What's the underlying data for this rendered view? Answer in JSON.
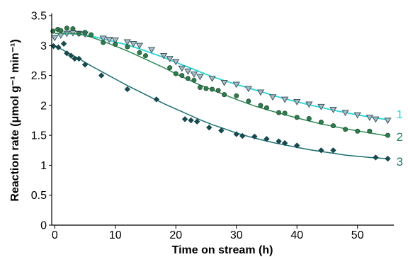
{
  "chart_data": {
    "type": "scatter",
    "xlabel": "Time on stream (h)",
    "ylabel": "Reaction rate (μmol g⁻¹ min⁻¹)",
    "xlim": [
      -0.5,
      56
    ],
    "ylim": [
      0,
      3.5
    ],
    "xticks": [
      0,
      10,
      20,
      30,
      40,
      50
    ],
    "yticks": [
      0,
      0.5,
      1,
      1.5,
      2,
      2.5,
      3,
      3.5
    ],
    "xtick_labels": [
      "0",
      "10",
      "20",
      "30",
      "40",
      "50"
    ],
    "ytick_labels": [
      "0",
      "0.5",
      "1",
      "1.5",
      "2",
      "2.5",
      "3",
      "3.5"
    ],
    "grid": false,
    "series": [
      {
        "name": "1",
        "marker": "triangle-down",
        "color": "#2ad4d4",
        "marker_color": "#3a5a66",
        "points": [
          [
            0,
            3.13
          ],
          [
            1,
            3.17
          ],
          [
            2,
            3.2
          ],
          [
            3,
            3.21
          ],
          [
            4,
            3.2
          ],
          [
            5,
            3.19
          ],
          [
            8,
            3.12
          ],
          [
            9,
            3.1
          ],
          [
            10,
            3.09
          ],
          [
            12,
            3.06
          ],
          [
            13,
            3.03
          ],
          [
            14,
            3.0
          ],
          [
            16,
            2.93
          ],
          [
            18,
            2.83
          ],
          [
            19,
            2.78
          ],
          [
            20,
            2.73
          ],
          [
            21,
            2.62
          ],
          [
            22,
            2.57
          ],
          [
            23,
            2.52
          ],
          [
            24,
            2.48
          ],
          [
            26,
            2.45
          ],
          [
            28,
            2.38
          ],
          [
            30,
            2.35
          ],
          [
            32,
            2.28
          ],
          [
            34,
            2.22
          ],
          [
            36,
            2.14
          ],
          [
            38,
            2.1
          ],
          [
            40,
            2.06
          ],
          [
            42,
            2.02
          ],
          [
            44,
            1.98
          ],
          [
            46,
            1.93
          ],
          [
            48,
            1.88
          ],
          [
            50,
            1.84
          ],
          [
            52,
            1.8
          ],
          [
            53,
            1.77
          ],
          [
            55,
            1.75
          ]
        ],
        "fit": [
          [
            0,
            3.16
          ],
          [
            2,
            3.2
          ],
          [
            4,
            3.19
          ],
          [
            6,
            3.16
          ],
          [
            8,
            3.11
          ],
          [
            10,
            3.06
          ],
          [
            12,
            3.01
          ],
          [
            15,
            2.91
          ],
          [
            18,
            2.8
          ],
          [
            20,
            2.72
          ],
          [
            23,
            2.6
          ],
          [
            26,
            2.48
          ],
          [
            30,
            2.35
          ],
          [
            34,
            2.23
          ],
          [
            38,
            2.11
          ],
          [
            42,
            2.01
          ],
          [
            46,
            1.92
          ],
          [
            50,
            1.84
          ],
          [
            53,
            1.79
          ],
          [
            55,
            1.76
          ]
        ]
      },
      {
        "name": "2",
        "marker": "circle",
        "color": "#2e8b57",
        "marker_color": "#2e7c4c",
        "points": [
          [
            -0.3,
            3.24
          ],
          [
            0.5,
            3.27
          ],
          [
            1,
            3.25
          ],
          [
            2,
            3.29
          ],
          [
            3,
            3.28
          ],
          [
            4,
            3.2
          ],
          [
            5,
            3.22
          ],
          [
            6,
            3.18
          ],
          [
            8,
            3.05
          ],
          [
            10,
            3.02
          ],
          [
            12,
            2.98
          ],
          [
            14,
            2.88
          ],
          [
            15,
            2.83
          ],
          [
            19,
            2.63
          ],
          [
            20,
            2.53
          ],
          [
            21,
            2.5
          ],
          [
            22,
            2.45
          ],
          [
            23,
            2.42
          ],
          [
            24,
            2.3
          ],
          [
            25,
            2.28
          ],
          [
            26,
            2.27
          ],
          [
            27,
            2.25
          ],
          [
            28,
            2.18
          ],
          [
            30,
            2.16
          ],
          [
            32,
            2.07
          ],
          [
            34,
            2.0
          ],
          [
            35,
            1.96
          ],
          [
            37,
            1.88
          ],
          [
            38,
            1.87
          ],
          [
            40,
            1.8
          ],
          [
            42,
            1.78
          ],
          [
            44,
            1.72
          ],
          [
            46,
            1.66
          ],
          [
            48,
            1.6
          ],
          [
            50,
            1.57
          ],
          [
            52,
            1.57
          ],
          [
            55,
            1.5
          ]
        ],
        "fit": [
          [
            0,
            3.2
          ],
          [
            2,
            3.21
          ],
          [
            4,
            3.19
          ],
          [
            6,
            3.14
          ],
          [
            8,
            3.07
          ],
          [
            10,
            2.99
          ],
          [
            12,
            2.91
          ],
          [
            15,
            2.77
          ],
          [
            18,
            2.63
          ],
          [
            21,
            2.48
          ],
          [
            24,
            2.34
          ],
          [
            27,
            2.22
          ],
          [
            30,
            2.1
          ],
          [
            33,
            1.99
          ],
          [
            36,
            1.9
          ],
          [
            40,
            1.79
          ],
          [
            44,
            1.69
          ],
          [
            48,
            1.61
          ],
          [
            52,
            1.54
          ],
          [
            55,
            1.49
          ]
        ]
      },
      {
        "name": "3",
        "marker": "diamond",
        "color": "#1a6e72",
        "marker_color": "#17494d",
        "points": [
          [
            -0.2,
            2.99
          ],
          [
            0.6,
            2.97
          ],
          [
            1.5,
            3.03
          ],
          [
            2,
            2.87
          ],
          [
            2.7,
            2.83
          ],
          [
            3.3,
            2.78
          ],
          [
            4,
            2.78
          ],
          [
            5,
            2.68
          ],
          [
            7.7,
            2.5
          ],
          [
            12,
            2.27
          ],
          [
            16.8,
            2.1
          ],
          [
            21.5,
            1.77
          ],
          [
            22.5,
            1.75
          ],
          [
            23.5,
            1.73
          ],
          [
            25.5,
            1.63
          ],
          [
            27.5,
            1.58
          ],
          [
            30,
            1.52
          ],
          [
            31,
            1.49
          ],
          [
            33,
            1.48
          ],
          [
            35,
            1.44
          ],
          [
            37,
            1.4
          ],
          [
            38,
            1.37
          ],
          [
            40,
            1.33
          ],
          [
            44,
            1.25
          ],
          [
            46,
            1.25
          ],
          [
            53,
            1.13
          ],
          [
            55,
            1.11
          ]
        ],
        "fit": [
          [
            0,
            3.0
          ],
          [
            2,
            2.89
          ],
          [
            4,
            2.78
          ],
          [
            6,
            2.66
          ],
          [
            8,
            2.55
          ],
          [
            10,
            2.44
          ],
          [
            12,
            2.33
          ],
          [
            14,
            2.23
          ],
          [
            16,
            2.13
          ],
          [
            18,
            2.03
          ],
          [
            20,
            1.94
          ],
          [
            22,
            1.85
          ],
          [
            24,
            1.76
          ],
          [
            26,
            1.68
          ],
          [
            28,
            1.61
          ],
          [
            30,
            1.54
          ],
          [
            32,
            1.48
          ],
          [
            34,
            1.43
          ],
          [
            36,
            1.38
          ],
          [
            38,
            1.34
          ],
          [
            40,
            1.3
          ],
          [
            42,
            1.26
          ],
          [
            44,
            1.23
          ],
          [
            46,
            1.2
          ],
          [
            48,
            1.17
          ],
          [
            50,
            1.15
          ],
          [
            52,
            1.13
          ],
          [
            55,
            1.11
          ]
        ]
      }
    ]
  }
}
